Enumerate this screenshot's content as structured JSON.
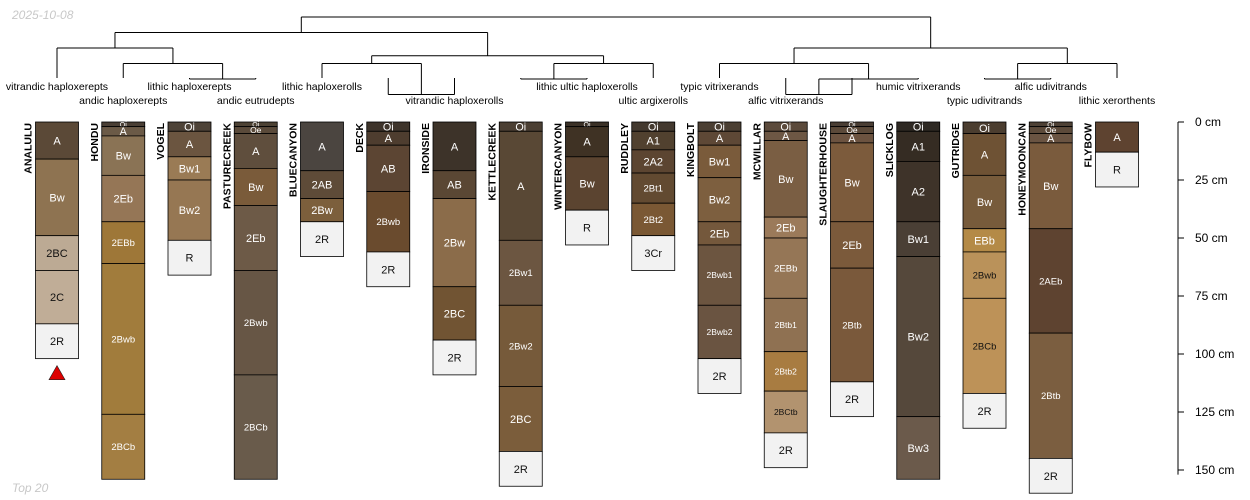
{
  "header": {
    "date": "2025-10-08"
  },
  "footer": {
    "label": "Top 20"
  },
  "chart_data": {
    "type": "soil-profile-sketch",
    "depth_units": "cm",
    "depth_range": [
      0,
      160
    ],
    "depth_ticks": [
      0,
      25,
      50,
      75,
      100,
      125,
      150
    ],
    "depth_tick_labels": [
      "0 cm",
      "25 cm",
      "50 cm",
      "75 cm",
      "100 cm",
      "125 cm",
      "150 cm"
    ],
    "marker": {
      "profile": "ANALULU",
      "shape": "triangle",
      "color": "#dd0000"
    },
    "dendrogram": {
      "order": [
        "ANALULU",
        "HONDU",
        "VOGEL",
        "PASTURECREEK",
        "BLUECANYON",
        "DECK",
        "IRONSIDE",
        "KETTLECREEK",
        "WINTERCANYON",
        "RUDDLEY",
        "KINGBOLT",
        "MCWILLAR",
        "SLAUGHTERHOUSE",
        "SLICKLOG",
        "GUTRIDGE",
        "HONEYMOONCAN",
        "FLYBOW"
      ],
      "merges": [
        {
          "a": "i:VOGEL",
          "b": "i:PASTURECREEK",
          "height": 3
        },
        {
          "a": "i:HONDU",
          "b": "m:0",
          "height": 2
        },
        {
          "a": "i:ANALULU",
          "b": "m:1",
          "height": 1
        },
        {
          "a": "i:DECK",
          "b": "i:IRONSIDE",
          "height": 4
        },
        {
          "a": "i:BLUECANYON",
          "b": "m:3",
          "height": 2
        },
        {
          "a": "i:KETTLECREEK",
          "b": "i:WINTERCANYON",
          "height": 3
        },
        {
          "a": "m:5",
          "b": "i:RUDDLEY",
          "height": 2
        },
        {
          "a": "m:4",
          "b": "m:6",
          "height": 1.5
        },
        {
          "a": "i:MCWILLAR",
          "b": "i:SLAUGHTERHOUSE",
          "height": 4
        },
        {
          "a": "m:8",
          "b": "i:SLICKLOG",
          "height": 3
        },
        {
          "a": "i:KINGBOLT",
          "b": "m:9",
          "height": 2
        },
        {
          "a": "i:GUTRIDGE",
          "b": "i:HONEYMOONCAN",
          "height": 3
        },
        {
          "a": "m:11",
          "b": "i:FLYBOW",
          "height": 2
        },
        {
          "a": "m:10",
          "b": "m:12",
          "height": 1
        },
        {
          "a": "m:2",
          "b": "m:7",
          "height": 0
        },
        {
          "a": "m:14",
          "b": "m:13",
          "height": -1
        }
      ]
    },
    "taxa_labels": [
      {
        "text": "vitrandic haploxerepts",
        "at": "ANALULU",
        "row": 1
      },
      {
        "text": "andic haploxerepts",
        "at": "HONDU",
        "row": 2
      },
      {
        "text": "lithic haploxerepts",
        "at": "VOGEL",
        "row": 1
      },
      {
        "text": "andic eutrudepts",
        "at": "PASTURECREEK",
        "row": 2
      },
      {
        "text": "lithic haploxerolls",
        "at": "BLUECANYON",
        "row": 1
      },
      {
        "text": "vitrandic haploxerolls",
        "at": "IRONSIDE",
        "row": 2
      },
      {
        "text": "lithic ultic haploxerolls",
        "at": "WINTERCANYON",
        "row": 1
      },
      {
        "text": "ultic argixerolls",
        "at": "RUDDLEY",
        "row": 2
      },
      {
        "text": "typic vitrixerands",
        "at": "KINGBOLT",
        "row": 1
      },
      {
        "text": "alfic vitrixerands",
        "at": "MCWILLAR",
        "row": 2
      },
      {
        "text": "humic vitrixerands",
        "at": "SLICKLOG",
        "row": 1
      },
      {
        "text": "alfic udivitrands",
        "at": "HONEYMOONCAN",
        "row": 1
      },
      {
        "text": "typic udivitrands",
        "at": "GUTRIDGE",
        "row": 2
      },
      {
        "text": "lithic xerorthents",
        "at": "FLYBOW",
        "row": 2
      }
    ],
    "profiles": [
      {
        "name": "ANALULU",
        "horizons": [
          {
            "name": "A",
            "top": 0,
            "bottom": 16,
            "color": "#5b4937"
          },
          {
            "name": "Bw",
            "top": 16,
            "bottom": 49,
            "color": "#8e7351"
          },
          {
            "name": "2BC",
            "top": 49,
            "bottom": 64,
            "color": "#bcaa94"
          },
          {
            "name": "2C",
            "top": 64,
            "bottom": 87,
            "color": "#c0ad97"
          },
          {
            "name": "2R",
            "top": 87,
            "bottom": 102,
            "color": "#f2f2f2"
          }
        ]
      },
      {
        "name": "HONDU",
        "horizons": [
          {
            "name": "Oi",
            "top": 0,
            "bottom": 2,
            "color": "#4a3f35"
          },
          {
            "name": "A",
            "top": 2,
            "bottom": 6,
            "color": "#6b5a47"
          },
          {
            "name": "Bw",
            "top": 6,
            "bottom": 23,
            "color": "#8a7355"
          },
          {
            "name": "2Eb",
            "top": 23,
            "bottom": 43,
            "color": "#957656"
          },
          {
            "name": "2EBb",
            "top": 43,
            "bottom": 61,
            "color": "#9e7738"
          },
          {
            "name": "2Bwb",
            "top": 61,
            "bottom": 126,
            "color": "#a17c3c"
          },
          {
            "name": "2BCb",
            "top": 126,
            "bottom": 154,
            "color": "#a37e42"
          }
        ]
      },
      {
        "name": "VOGEL",
        "horizons": [
          {
            "name": "Oi",
            "top": 0,
            "bottom": 4,
            "color": "#4e4338"
          },
          {
            "name": "A",
            "top": 4,
            "bottom": 15,
            "color": "#6b5540"
          },
          {
            "name": "Bw1",
            "top": 15,
            "bottom": 25,
            "color": "#9a7b55"
          },
          {
            "name": "Bw2",
            "top": 25,
            "bottom": 51,
            "color": "#967753"
          },
          {
            "name": "R",
            "top": 51,
            "bottom": 66,
            "color": "#f2f2f2"
          }
        ]
      },
      {
        "name": "PASTURECREEK",
        "horizons": [
          {
            "name": "Oi",
            "top": 0,
            "bottom": 2,
            "color": "#4d4234"
          },
          {
            "name": "Oe",
            "top": 2,
            "bottom": 5,
            "color": "#5a4a3a"
          },
          {
            "name": "A",
            "top": 5,
            "bottom": 20,
            "color": "#5f4e3d"
          },
          {
            "name": "Bw",
            "top": 20,
            "bottom": 36,
            "color": "#7a5b3a"
          },
          {
            "name": "2Eb",
            "top": 36,
            "bottom": 64,
            "color": "#6d5a47"
          },
          {
            "name": "2Bwb",
            "top": 64,
            "bottom": 109,
            "color": "#675645"
          },
          {
            "name": "2BCb",
            "top": 109,
            "bottom": 154,
            "color": "#695b4b"
          }
        ]
      },
      {
        "name": "BLUECANYON",
        "horizons": [
          {
            "name": "A",
            "top": 0,
            "bottom": 21,
            "color": "#4b4540"
          },
          {
            "name": "2AB",
            "top": 21,
            "bottom": 33,
            "color": "#5e4b38"
          },
          {
            "name": "2Bw",
            "top": 33,
            "bottom": 43,
            "color": "#7c5f3c"
          },
          {
            "name": "2R",
            "top": 43,
            "bottom": 58,
            "color": "#f2f2f2"
          }
        ]
      },
      {
        "name": "DECK",
        "horizons": [
          {
            "name": "Oi",
            "top": 0,
            "bottom": 4,
            "color": "#3e342b"
          },
          {
            "name": "A",
            "top": 4,
            "bottom": 10,
            "color": "#4e3d2f"
          },
          {
            "name": "AB",
            "top": 10,
            "bottom": 30,
            "color": "#5c4533"
          },
          {
            "name": "2Bwb",
            "top": 30,
            "bottom": 56,
            "color": "#6a4b2e"
          },
          {
            "name": "2R",
            "top": 56,
            "bottom": 71,
            "color": "#f2f2f2"
          }
        ]
      },
      {
        "name": "IRONSIDE",
        "horizons": [
          {
            "name": "A",
            "top": 0,
            "bottom": 21,
            "color": "#3d3329"
          },
          {
            "name": "AB",
            "top": 21,
            "bottom": 33,
            "color": "#5a4734"
          },
          {
            "name": "2Bw",
            "top": 33,
            "bottom": 71,
            "color": "#8b6c4a"
          },
          {
            "name": "2BC",
            "top": 71,
            "bottom": 94,
            "color": "#715433"
          },
          {
            "name": "2R",
            "top": 94,
            "bottom": 109,
            "color": "#f2f2f2"
          }
        ]
      },
      {
        "name": "KETTLECREEK",
        "horizons": [
          {
            "name": "Oi",
            "top": 0,
            "bottom": 4,
            "color": "#4b3f33"
          },
          {
            "name": "A",
            "top": 4,
            "bottom": 51,
            "color": "#594835"
          },
          {
            "name": "2Bw1",
            "top": 51,
            "bottom": 79,
            "color": "#6c5641"
          },
          {
            "name": "2Bw2",
            "top": 79,
            "bottom": 114,
            "color": "#765a3a"
          },
          {
            "name": "2BC",
            "top": 114,
            "bottom": 142,
            "color": "#7b5d3b"
          },
          {
            "name": "2R",
            "top": 142,
            "bottom": 157,
            "color": "#f2f2f2"
          }
        ]
      },
      {
        "name": "WINTERCANYON",
        "horizons": [
          {
            "name": "Oi",
            "top": 0,
            "bottom": 2,
            "color": "#3b3127"
          },
          {
            "name": "A",
            "top": 2,
            "bottom": 15,
            "color": "#3f3224"
          },
          {
            "name": "Bw",
            "top": 15,
            "bottom": 38,
            "color": "#5b4430"
          },
          {
            "name": "R",
            "top": 38,
            "bottom": 53,
            "color": "#f2f2f2"
          }
        ]
      },
      {
        "name": "RUDDLEY",
        "horizons": [
          {
            "name": "Oi",
            "top": 0,
            "bottom": 4,
            "color": "#43392f"
          },
          {
            "name": "A1",
            "top": 4,
            "bottom": 12,
            "color": "#51412f"
          },
          {
            "name": "2A2",
            "top": 12,
            "bottom": 22,
            "color": "#5c4531"
          },
          {
            "name": "2Bt1",
            "top": 22,
            "bottom": 35,
            "color": "#624a31"
          },
          {
            "name": "2Bt2",
            "top": 35,
            "bottom": 49,
            "color": "#7a5834"
          },
          {
            "name": "3Cr",
            "top": 49,
            "bottom": 64,
            "color": "#f2f2f2"
          }
        ]
      },
      {
        "name": "KINGBOLT",
        "horizons": [
          {
            "name": "Oi",
            "top": 0,
            "bottom": 4,
            "color": "#4b3f33"
          },
          {
            "name": "A",
            "top": 4,
            "bottom": 10,
            "color": "#5e4836"
          },
          {
            "name": "Bw1",
            "top": 10,
            "bottom": 24,
            "color": "#7a5b3b"
          },
          {
            "name": "Bw2",
            "top": 24,
            "bottom": 43,
            "color": "#7d5f3f"
          },
          {
            "name": "2Eb",
            "top": 43,
            "bottom": 53,
            "color": "#74583c"
          },
          {
            "name": "2Bwb1",
            "top": 53,
            "bottom": 79,
            "color": "#6c5540"
          },
          {
            "name": "2Bwb2",
            "top": 79,
            "bottom": 102,
            "color": "#6a5441"
          },
          {
            "name": "2R",
            "top": 102,
            "bottom": 117,
            "color": "#f2f2f2"
          }
        ]
      },
      {
        "name": "MCWILLAR",
        "horizons": [
          {
            "name": "Oi",
            "top": 0,
            "bottom": 4,
            "color": "#5b4a3b"
          },
          {
            "name": "A",
            "top": 4,
            "bottom": 8,
            "color": "#6d5744"
          },
          {
            "name": "Bw",
            "top": 8,
            "bottom": 41,
            "color": "#7a5e43"
          },
          {
            "name": "2Eb",
            "top": 41,
            "bottom": 50,
            "color": "#9b7a5a"
          },
          {
            "name": "2EBb",
            "top": 50,
            "bottom": 76,
            "color": "#957656"
          },
          {
            "name": "2Btb1",
            "top": 76,
            "bottom": 99,
            "color": "#8f7152"
          },
          {
            "name": "2Btb2",
            "top": 99,
            "bottom": 116,
            "color": "#a87c41"
          },
          {
            "name": "2BCtb",
            "top": 116,
            "bottom": 134,
            "color": "#b2936f"
          },
          {
            "name": "2R",
            "top": 134,
            "bottom": 149,
            "color": "#f2f2f2"
          }
        ]
      },
      {
        "name": "SLAUGHTERHOUSE",
        "horizons": [
          {
            "name": "Oi",
            "top": 0,
            "bottom": 2,
            "color": "#4a3e34"
          },
          {
            "name": "Oe",
            "top": 2,
            "bottom": 5,
            "color": "#5b4939"
          },
          {
            "name": "A",
            "top": 5,
            "bottom": 9,
            "color": "#6c5340"
          },
          {
            "name": "Bw",
            "top": 9,
            "bottom": 43,
            "color": "#7c5b3c"
          },
          {
            "name": "2Eb",
            "top": 43,
            "bottom": 63,
            "color": "#7b5a3b"
          },
          {
            "name": "2Btb",
            "top": 63,
            "bottom": 112,
            "color": "#7a593b"
          },
          {
            "name": "2R",
            "top": 112,
            "bottom": 127,
            "color": "#f2f2f2"
          }
        ]
      },
      {
        "name": "SLICKLOG",
        "horizons": [
          {
            "name": "Oi",
            "top": 0,
            "bottom": 4,
            "color": "#2e2923"
          },
          {
            "name": "A1",
            "top": 4,
            "bottom": 17,
            "color": "#352c23"
          },
          {
            "name": "A2",
            "top": 17,
            "bottom": 43,
            "color": "#3e3329"
          },
          {
            "name": "Bw1",
            "top": 43,
            "bottom": 58,
            "color": "#4a3f35"
          },
          {
            "name": "Bw2",
            "top": 58,
            "bottom": 127,
            "color": "#55483b"
          },
          {
            "name": "Bw3",
            "top": 127,
            "bottom": 154,
            "color": "#6b5a4b"
          }
        ]
      },
      {
        "name": "GUTRIDGE",
        "horizons": [
          {
            "name": "Oi",
            "top": 0,
            "bottom": 5,
            "color": "#4b3d2f"
          },
          {
            "name": "A",
            "top": 5,
            "bottom": 23,
            "color": "#6e5234"
          },
          {
            "name": "Bw",
            "top": 23,
            "bottom": 46,
            "color": "#775b3b"
          },
          {
            "name": "EBb",
            "top": 46,
            "bottom": 56,
            "color": "#b48a47"
          },
          {
            "name": "2Bwb",
            "top": 56,
            "bottom": 76,
            "color": "#ba925a"
          },
          {
            "name": "2BCb",
            "top": 76,
            "bottom": 117,
            "color": "#bd9258"
          },
          {
            "name": "2R",
            "top": 117,
            "bottom": 132,
            "color": "#f2f2f2"
          }
        ]
      },
      {
        "name": "HONEYMOONCAN",
        "horizons": [
          {
            "name": "Oi",
            "top": 0,
            "bottom": 2,
            "color": "#4e4135"
          },
          {
            "name": "Oe",
            "top": 2,
            "bottom": 5,
            "color": "#5c4a3a"
          },
          {
            "name": "A",
            "top": 5,
            "bottom": 9,
            "color": "#6a5442"
          },
          {
            "name": "Bw",
            "top": 9,
            "bottom": 46,
            "color": "#7a5b3d"
          },
          {
            "name": "2AEb",
            "top": 46,
            "bottom": 91,
            "color": "#5e4330"
          },
          {
            "name": "2Btb",
            "top": 91,
            "bottom": 145,
            "color": "#7b5e40"
          },
          {
            "name": "2R",
            "top": 145,
            "bottom": 160,
            "color": "#f2f2f2"
          }
        ]
      },
      {
        "name": "FLYBOW",
        "horizons": [
          {
            "name": "A",
            "top": 0,
            "bottom": 13,
            "color": "#5e4330"
          },
          {
            "name": "R",
            "top": 13,
            "bottom": 28,
            "color": "#f2f2f2"
          }
        ]
      }
    ]
  }
}
